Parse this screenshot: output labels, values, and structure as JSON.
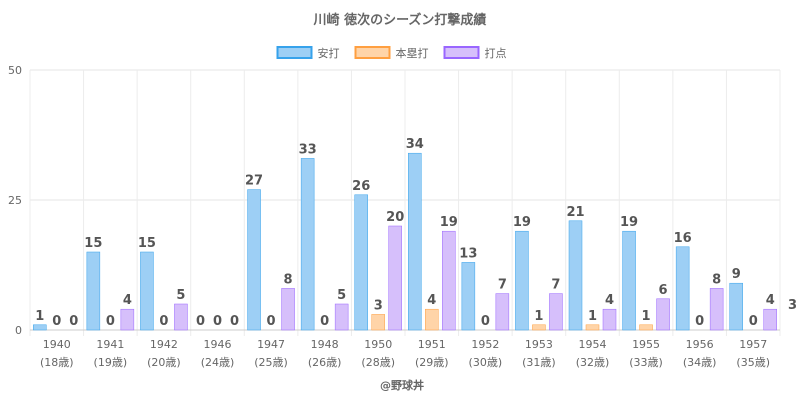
{
  "chart_data": {
    "type": "bar",
    "title": "川崎 徳次のシーズン打撃成績",
    "categories": [
      "1940",
      "1941",
      "1942",
      "1946",
      "1947",
      "1948",
      "1950",
      "1951",
      "1952",
      "1953",
      "1954",
      "1955",
      "1956",
      "1957"
    ],
    "categories_sub": [
      "(18歳)",
      "(19歳)",
      "(20歳)",
      "(24歳)",
      "(25歳)",
      "(26歳)",
      "(28歳)",
      "(29歳)",
      "(30歳)",
      "(31歳)",
      "(32歳)",
      "(33歳)",
      "(34歳)",
      "(35歳)"
    ],
    "series": [
      {
        "name": "安打",
        "color": "#9dcff5",
        "border": "#36a2eb",
        "values": [
          1,
          15,
          15,
          0,
          27,
          33,
          26,
          34,
          13,
          19,
          21,
          19,
          16,
          9
        ]
      },
      {
        "name": "本塁打",
        "color": "#ffd4a8",
        "border": "#ff9f40",
        "values": [
          0,
          0,
          0,
          0,
          0,
          0,
          3,
          4,
          0,
          1,
          1,
          1,
          0,
          0
        ]
      },
      {
        "name": "打点",
        "color": "#d6bffb",
        "border": "#9966ff",
        "values": [
          0,
          4,
          5,
          0,
          8,
          5,
          20,
          19,
          7,
          7,
          4,
          6,
          8,
          4
        ]
      }
    ],
    "ylim": [
      0,
      50
    ],
    "yticks": [
      0,
      25,
      50
    ],
    "grid": true,
    "legend_position": "top",
    "overflow_label": "3"
  },
  "credit": "@野球丼"
}
